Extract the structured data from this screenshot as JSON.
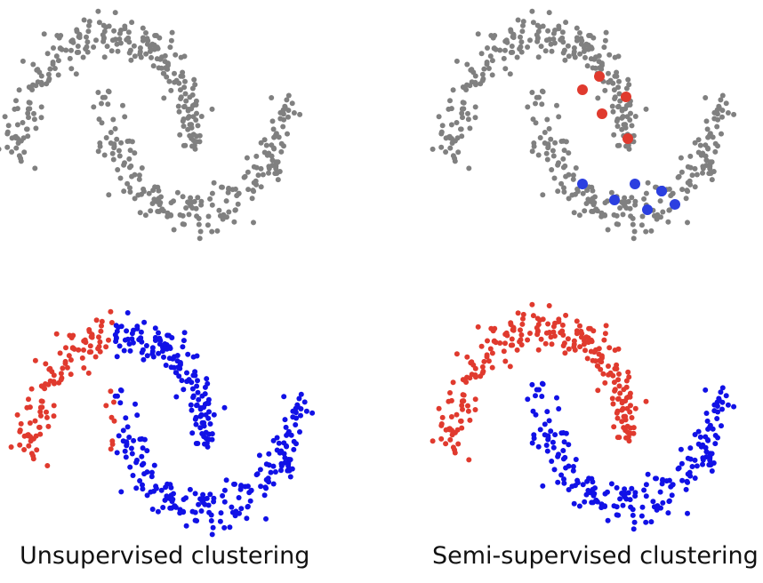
{
  "captions": {
    "left": "Unsupervised clustering",
    "right": "Semi-supervised clustering"
  },
  "colors": {
    "unlabeled": "#808080",
    "red": "#e03a2e",
    "blue": "#1111e6",
    "labeled_blue": "#2b3fe0"
  },
  "dataset": {
    "description_type": "two interleaving moons, ~460 points",
    "random_seed_note": "point cloud approximated procedurally"
  },
  "labeled_points": {
    "red_count": 5,
    "blue_count": 7
  }
}
